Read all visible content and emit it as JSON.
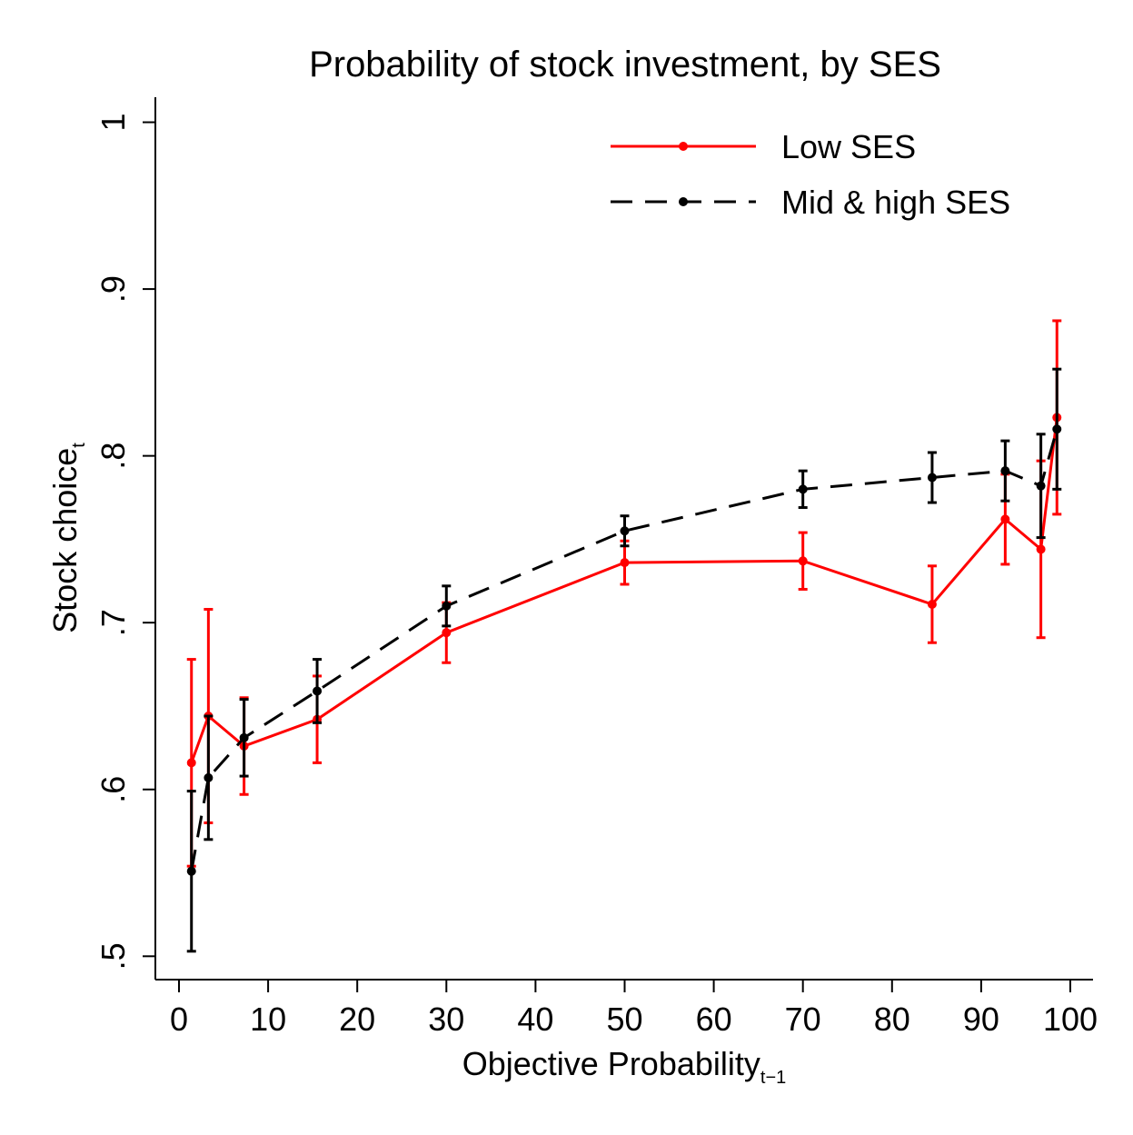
{
  "chart_data": {
    "type": "line",
    "title": "Probability of stock investment, by SES",
    "x_label": "Objective Probability",
    "x_label_sub": "t−1",
    "y_label": "Stock choice",
    "y_label_sub": "t",
    "x": [
      1.4,
      3.3,
      7.3,
      15.5,
      30,
      50,
      70,
      84.5,
      92.7,
      96.7,
      98.5
    ],
    "series": [
      {
        "name": "Low SES",
        "color": "#ff0000",
        "dash": false,
        "values": [
          0.616,
          0.644,
          0.626,
          0.642,
          0.694,
          0.736,
          0.737,
          0.711,
          0.762,
          0.744,
          0.823
        ],
        "errors": [
          0.062,
          0.064,
          0.029,
          0.026,
          0.018,
          0.013,
          0.017,
          0.023,
          0.027,
          0.053,
          0.058
        ]
      },
      {
        "name": "Mid & high SES",
        "color": "#000000",
        "dash": true,
        "values": [
          0.551,
          0.607,
          0.631,
          0.659,
          0.71,
          0.755,
          0.78,
          0.787,
          0.791,
          0.782,
          0.816
        ],
        "errors": [
          0.048,
          0.037,
          0.023,
          0.019,
          0.012,
          0.009,
          0.011,
          0.015,
          0.018,
          0.031,
          0.036
        ]
      }
    ],
    "xlim": [
      -2.65,
      102.55
    ],
    "ylim": [
      0.486,
      1.015
    ],
    "xticks": [
      0,
      10,
      20,
      30,
      40,
      50,
      60,
      70,
      80,
      90,
      100
    ],
    "yticks": [
      {
        "value": 0.5,
        "label": ".5"
      },
      {
        "value": 0.6,
        "label": ".6"
      },
      {
        "value": 0.7,
        "label": ".7"
      },
      {
        "value": 0.8,
        "label": ".8"
      },
      {
        "value": 0.9,
        "label": ".9"
      },
      1
    ],
    "legend": "top-right",
    "grid": false
  }
}
